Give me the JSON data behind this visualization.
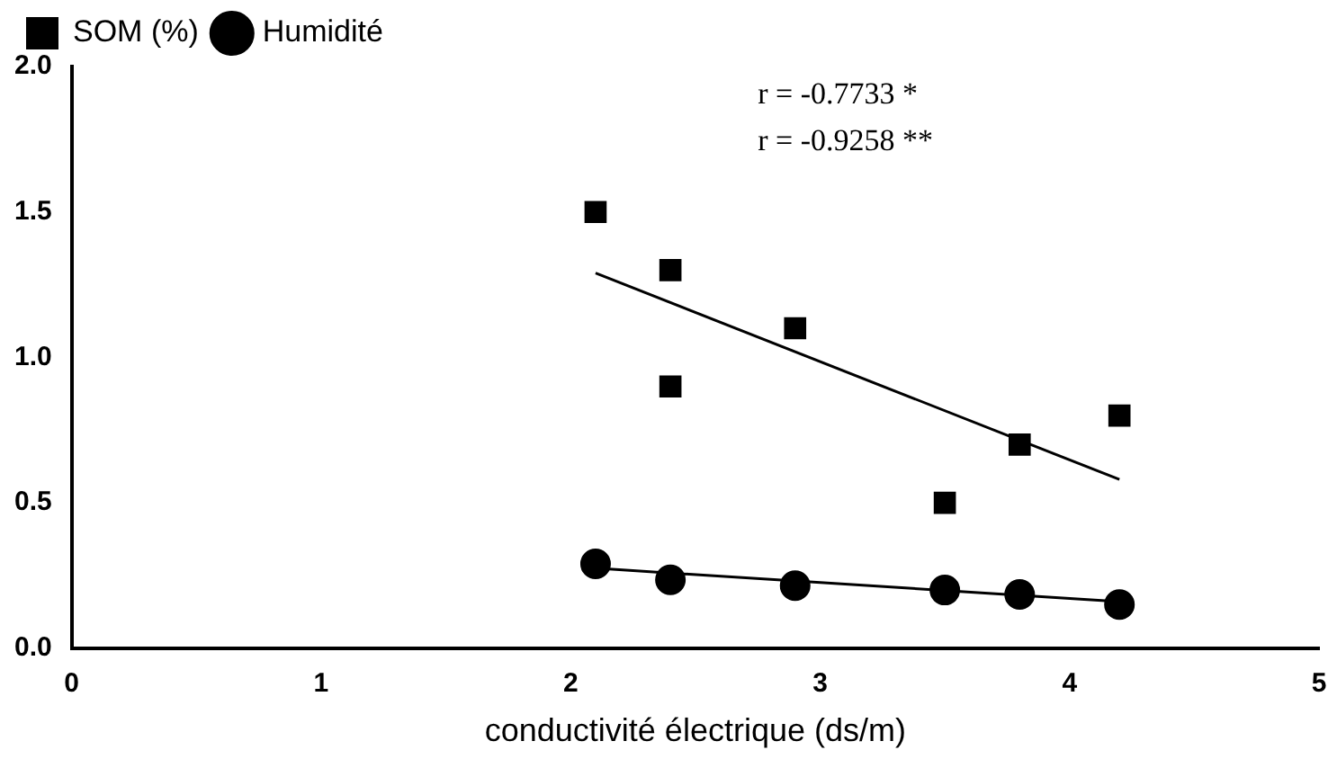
{
  "chart_data": {
    "type": "scatter",
    "xlabel": "conductivité électrique (ds/m)",
    "xlim": [
      0,
      5
    ],
    "xticks": [
      0,
      1,
      2,
      3,
      4,
      5
    ],
    "ylim": [
      0,
      2
    ],
    "yticks": [
      {
        "value": 0,
        "label": "0.0"
      },
      {
        "value": 0.5,
        "label": "0.5"
      },
      {
        "value": 1,
        "label": "1.0"
      },
      {
        "value": 1.5,
        "label": "1.5"
      },
      {
        "value": 2,
        "label": "2.0"
      }
    ],
    "grid": false,
    "legend": "top",
    "series": [
      {
        "name": "SOM (%)",
        "color": "#000000",
        "marker": "square",
        "x": [
          2.1,
          2.4,
          2.4,
          2.9,
          3.5,
          3.8,
          4.2
        ],
        "values": [
          1.5,
          1.3,
          0.9,
          1.1,
          0.5,
          0.7,
          0.8
        ]
      },
      {
        "name": "Humidité",
        "color": "#000000",
        "marker": "circle",
        "x": [
          2.1,
          2.4,
          2.9,
          3.5,
          3.8,
          4.2
        ],
        "values": [
          0.29,
          0.235,
          0.215,
          0.2,
          0.185,
          0.15
        ]
      },
      {
        "type": "line",
        "color": "#000000",
        "marker": "none",
        "x": [
          2.1,
          4.2
        ],
        "values": [
          1.29,
          0.58
        ]
      },
      {
        "type": "line",
        "color": "#000000",
        "marker": "none",
        "x": [
          2.1,
          4.2
        ],
        "values": [
          0.275,
          0.16
        ]
      }
    ],
    "annotations": [
      "r = -0.7733 *",
      "r = -0.9258 **"
    ]
  }
}
